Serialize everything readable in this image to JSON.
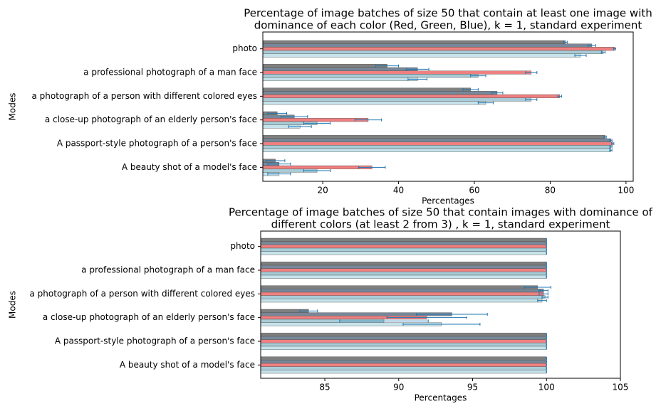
{
  "chart_data": [
    {
      "type": "barh",
      "title": [
        "Percentage of image batches of size 50 that contain at least one image with",
        "dominance of each color (Red, Green, Blue), k = 1, standard experiment"
      ],
      "xlabel": "Percentages",
      "ylabel": "Modes",
      "categories": [
        "photo",
        "a professional photograph of a man face",
        "a photograph of a person with different colored eyes",
        "a close-up photograph of an elderly person's face",
        "A passport-style photograph of a person's face",
        "A beauty shot of a model's face"
      ],
      "series": [
        {
          "color": "#7f7f7f",
          "values": [
            84,
            37,
            59,
            8,
            94.5,
            7.5
          ],
          "errors": [
            0.5,
            3,
            2,
            2.5,
            0.3,
            2.5
          ]
        },
        {
          "color": "#778899",
          "values": [
            91,
            45,
            66,
            12.5,
            96,
            8.5
          ],
          "errors": [
            1,
            3,
            1.5,
            3.5,
            0.3,
            3
          ]
        },
        {
          "color": "#f08080",
          "values": [
            97,
            75,
            82.5,
            32,
            96.5,
            33
          ],
          "errors": [
            0.3,
            1.5,
            0.5,
            3.5,
            0.3,
            3.5
          ]
        },
        {
          "color": "#a8ccd7",
          "values": [
            94,
            61,
            75,
            18.5,
            96,
            18.5
          ],
          "errors": [
            0.5,
            2,
            1.5,
            3.5,
            0.3,
            3.5
          ]
        },
        {
          "color": "#c6e2ea",
          "values": [
            88,
            45,
            63,
            14,
            96,
            8.5
          ],
          "errors": [
            1.5,
            2.5,
            2,
            3,
            0.3,
            3
          ]
        }
      ],
      "xlim": [
        4.2,
        101.9
      ],
      "xticks": [
        20,
        40,
        60,
        80,
        100
      ]
    },
    {
      "type": "barh",
      "title": [
        "Percentage of image batches of size 50 that contain images with dominance of",
        "different colors (at least 2 from 3) , k = 1, standard experiment"
      ],
      "xlabel": "Percentages",
      "ylabel": "Modes",
      "categories": [
        "photo",
        "a professional photograph of a man face",
        "a photograph of a person with different colored eyes",
        "a close-up photograph of an elderly person's face",
        "A passport-style photograph of a person's face",
        "A beauty shot of a model's face"
      ],
      "series": [
        {
          "color": "#7f7f7f",
          "values": [
            100,
            100,
            99.4,
            83.9,
            100,
            100
          ],
          "errors": [
            0,
            0,
            0.9,
            0.6,
            0,
            0
          ]
        },
        {
          "color": "#778899",
          "values": [
            100,
            100,
            99.8,
            93.6,
            100,
            100
          ],
          "errors": [
            0,
            0,
            0.3,
            2.4,
            0,
            0
          ]
        },
        {
          "color": "#f08080",
          "values": [
            100,
            100,
            99.8,
            91.9,
            100,
            100
          ],
          "errors": [
            0,
            0,
            0.3,
            2.7,
            0,
            0
          ]
        },
        {
          "color": "#a8ccd7",
          "values": [
            100,
            100,
            99.9,
            89.0,
            100,
            100
          ],
          "errors": [
            0,
            0,
            0.2,
            3,
            0,
            0
          ]
        },
        {
          "color": "#c6e2ea",
          "values": [
            100,
            100,
            99.7,
            92.9,
            100,
            100
          ],
          "errors": [
            0,
            0,
            0.3,
            2.6,
            0,
            0
          ]
        }
      ],
      "xlim": [
        80.66,
        105
      ],
      "xticks": [
        85,
        90,
        95,
        100,
        105
      ]
    }
  ]
}
